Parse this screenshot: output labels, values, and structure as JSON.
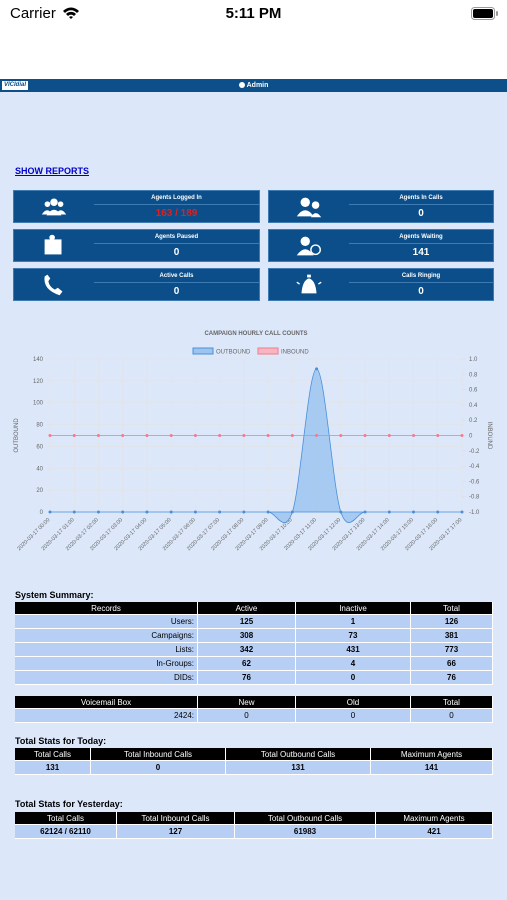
{
  "status_bar": {
    "carrier": "Carrier",
    "time": "5:11 PM"
  },
  "header": {
    "logo": "VICIdial",
    "user": "Admin"
  },
  "show_reports": "SHOW REPORTS",
  "tiles": [
    {
      "label": "Agents Logged In",
      "value": "163 / 189"
    },
    {
      "label": "Agents In Calls",
      "value": 0
    },
    {
      "label": "Agents Paused",
      "value": 0
    },
    {
      "label": "Agents Waiting",
      "value": 141
    },
    {
      "label": "Active Calls",
      "value": 0
    },
    {
      "label": "Calls Ringing",
      "value": 0
    }
  ],
  "chart_data": {
    "type": "line",
    "title": "CAMPAIGN HOURLY CALL COUNTS",
    "y_label": "OUTBOUND",
    "y2_label": "INBOUND",
    "categories": [
      "2020-03-17 00:00",
      "2020-03-17 01:00",
      "2020-03-17 02:00",
      "2020-03-17 03:00",
      "2020-03-17 04:00",
      "2020-03-17 05:00",
      "2020-03-17 06:00",
      "2020-03-17 07:00",
      "2020-03-17 08:00",
      "2020-03-17 09:00",
      "2020-03-17 10:00",
      "2020-03-17 11:00",
      "2020-03-17 12:00",
      "2020-03-17 13:00",
      "2020-03-17 14:00",
      "2020-03-17 15:00",
      "2020-03-17 16:00",
      "2020-03-17 17:00"
    ],
    "series": [
      {
        "name": "OUTBOUND",
        "color": "#4a8fd9",
        "fill": "#9cc4ef",
        "values": [
          0,
          0,
          0,
          0,
          0,
          0,
          0,
          0,
          0,
          0,
          0,
          131,
          0,
          0,
          0,
          0,
          0,
          0
        ]
      },
      {
        "name": "INBOUND",
        "color": "#f07c8c",
        "fill": "#f7b6c0",
        "axis": "y2",
        "values": [
          0,
          0,
          0,
          0,
          0,
          0,
          0,
          0,
          0,
          0,
          0,
          0,
          0,
          0,
          0,
          0,
          0,
          0
        ]
      }
    ],
    "ylim": [
      0,
      140
    ],
    "yticks": [
      0,
      20,
      40,
      60,
      80,
      100,
      120,
      140
    ],
    "y2lim": [
      -1,
      1
    ],
    "y2ticks": [
      {
        "value": -1,
        "label": "-1.0"
      },
      -0.8,
      -0.6,
      -0.4,
      -0.2,
      0,
      0.2,
      0.4,
      0.6,
      0.8,
      {
        "value": 1,
        "label": "1.0"
      }
    ],
    "grid": true,
    "legend": "top"
  },
  "system_summary": {
    "title": "System Summary:",
    "columns": [
      "Records",
      "Active",
      "Inactive",
      "Total"
    ],
    "rows": [
      [
        "Users:",
        125,
        1,
        126
      ],
      [
        "Campaigns:",
        308,
        73,
        381
      ],
      [
        "Lists:",
        342,
        431,
        773
      ],
      [
        "In-Groups:",
        62,
        4,
        66
      ],
      [
        "DIDs:",
        76,
        0,
        76
      ]
    ]
  },
  "voicemail": {
    "columns": [
      "Voicemail Box",
      "New",
      "Old",
      "Total"
    ],
    "rows": [
      [
        "2424:",
        0,
        0,
        0
      ]
    ]
  },
  "today": {
    "title": "Total Stats for Today:",
    "columns": [
      "Total Calls",
      "Total Inbound Calls",
      "Total Outbound Calls",
      "Maximum Agents"
    ],
    "rows": [
      [
        131,
        0,
        131,
        141
      ]
    ]
  },
  "yesterday": {
    "title": "Total Stats for Yesterday:",
    "columns": [
      "Total Calls",
      "Total Inbound Calls",
      "Total Outbound Calls",
      "Maximum Agents"
    ],
    "rows": [
      [
        "62124 / 62110",
        127,
        61983,
        421
      ]
    ]
  }
}
